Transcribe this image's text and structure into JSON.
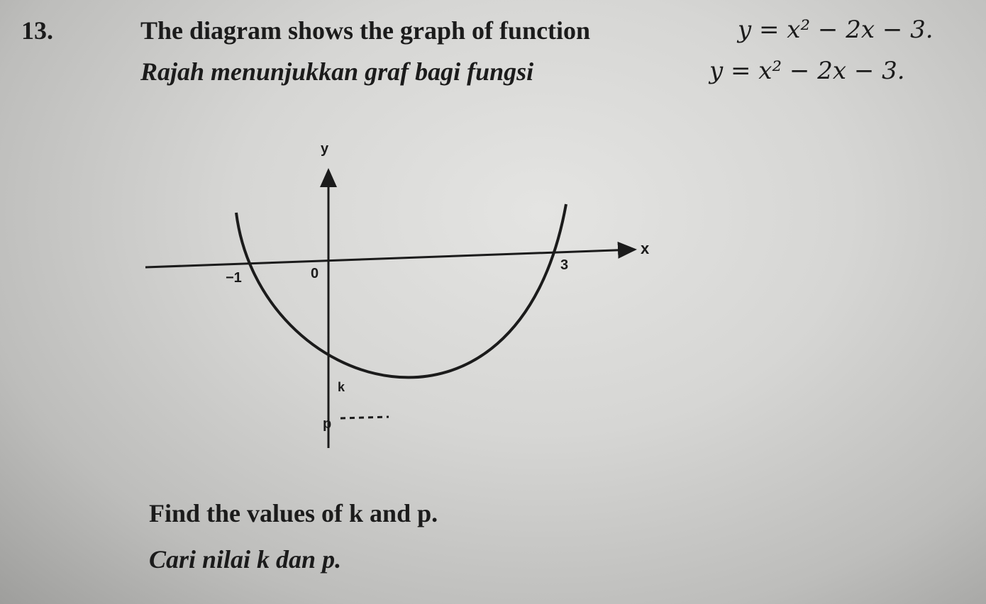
{
  "question": {
    "number": "13.",
    "english": {
      "text": "The diagram shows the graph of function",
      "equation": "y = x² − 2x − 3."
    },
    "malay": {
      "text": "Rajah menunjukkan graf bagi fungsi",
      "equation": "y = x² − 2x − 3."
    },
    "diagram": {
      "y_axis": "y",
      "x_axis": "x",
      "root_left": "−1",
      "origin": "0",
      "root_right": "3",
      "point_k": "k",
      "point_p": "p"
    },
    "task_english": "Find the values of k and p.",
    "task_malay": "Cari nilai k dan p."
  }
}
